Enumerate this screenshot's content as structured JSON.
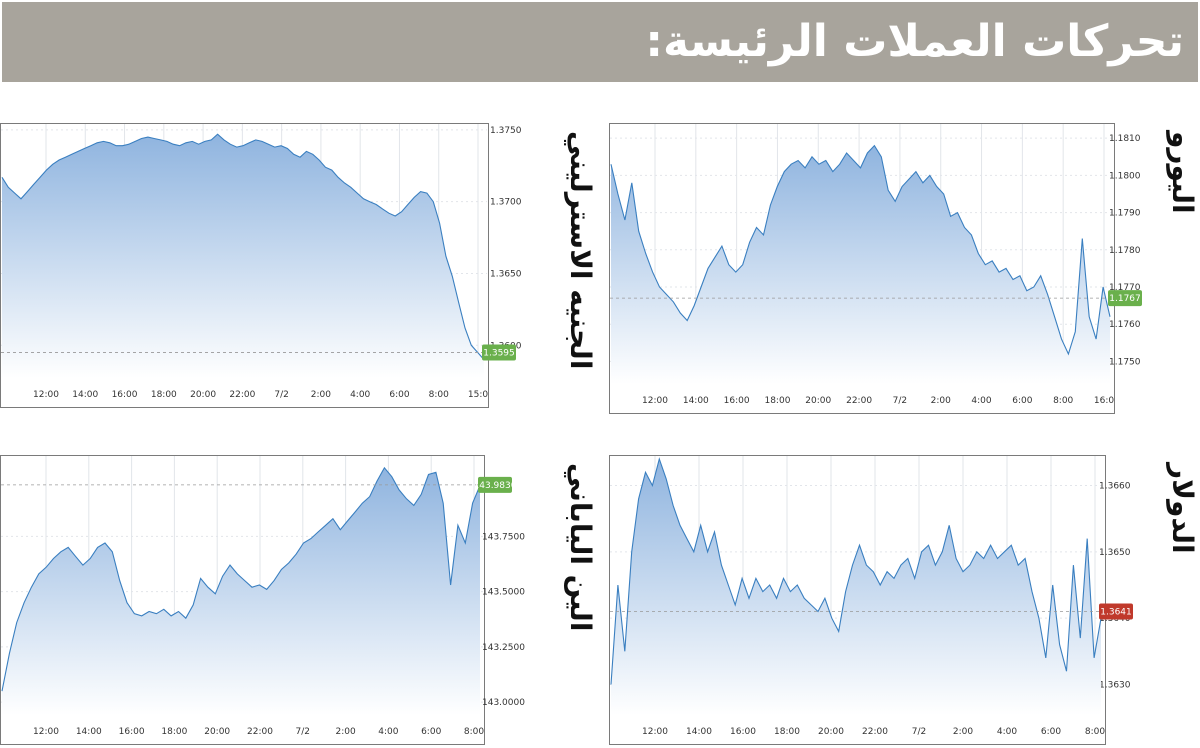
{
  "header": {
    "title": "تحركات العملات الرئيسة:"
  },
  "colors": {
    "line": "#3a7fc0",
    "fill_top": "#8fb4df",
    "fill_bottom": "#ffffff",
    "grid": "#e2e5ea",
    "frame": "#7a7a7a",
    "header_bg": "#a8a49c",
    "badge_green": "#6ab04c",
    "badge_red": "#c0392b"
  },
  "chart_data": [
    {
      "id": "eur",
      "type": "area",
      "title": "اليورو",
      "x_ticks": [
        "12:00",
        "14:00",
        "16:00",
        "18:00",
        "20:00",
        "22:00",
        "7/2",
        "2:00",
        "4:00",
        "6:00",
        "8:00",
        "16:0"
      ],
      "y_ticks": [
        "1.1810",
        "1.1800",
        "1.1790",
        "1.1780",
        "1.1770",
        "1.1760",
        "1.1750"
      ],
      "ylim": [
        1.1745,
        1.1813
      ],
      "current_value": "1.1767",
      "badge_color": "green",
      "values": [
        1.1803,
        1.1795,
        1.1788,
        1.1798,
        1.1785,
        1.1779,
        1.1774,
        1.177,
        1.1768,
        1.1766,
        1.1763,
        1.1761,
        1.1765,
        1.177,
        1.1775,
        1.1778,
        1.1781,
        1.1776,
        1.1774,
        1.1776,
        1.1782,
        1.1786,
        1.1784,
        1.1792,
        1.1797,
        1.1801,
        1.1803,
        1.1804,
        1.1802,
        1.1805,
        1.1803,
        1.1804,
        1.1801,
        1.1803,
        1.1806,
        1.1804,
        1.1802,
        1.1806,
        1.1808,
        1.1805,
        1.1796,
        1.1793,
        1.1797,
        1.1799,
        1.1801,
        1.1798,
        1.18,
        1.1797,
        1.1795,
        1.1789,
        1.179,
        1.1786,
        1.1784,
        1.1779,
        1.1776,
        1.1777,
        1.1774,
        1.1775,
        1.1772,
        1.1773,
        1.1769,
        1.177,
        1.1773,
        1.1768,
        1.1762,
        1.1756,
        1.1752,
        1.1758,
        1.1783,
        1.1762,
        1.1756,
        1.177,
        1.1762
      ]
    },
    {
      "id": "gbp",
      "type": "area",
      "title": "الجنيه الاسترليني",
      "x_ticks": [
        "12:00",
        "14:00",
        "16:00",
        "18:00",
        "20:00",
        "22:00",
        "7/2",
        "2:00",
        "4:00",
        "6:00",
        "8:00",
        "15:0"
      ],
      "y_ticks": [
        "1.3750",
        "1.3700",
        "1.3650",
        "1.3600"
      ],
      "ylim": [
        1.358,
        1.3752
      ],
      "current_value": "1.3595",
      "badge_color": "green",
      "values": [
        1.3717,
        1.371,
        1.3706,
        1.3702,
        1.3707,
        1.3712,
        1.3717,
        1.3722,
        1.3726,
        1.3729,
        1.3731,
        1.3733,
        1.3735,
        1.3737,
        1.3739,
        1.3741,
        1.3742,
        1.3741,
        1.3739,
        1.3739,
        1.374,
        1.3742,
        1.3744,
        1.3745,
        1.3744,
        1.3743,
        1.3742,
        1.374,
        1.3739,
        1.3741,
        1.3742,
        1.374,
        1.3742,
        1.3743,
        1.3747,
        1.3743,
        1.374,
        1.3738,
        1.3739,
        1.3741,
        1.3743,
        1.3742,
        1.374,
        1.3738,
        1.3739,
        1.3737,
        1.3733,
        1.3731,
        1.3735,
        1.3733,
        1.3729,
        1.3724,
        1.3722,
        1.3717,
        1.3713,
        1.371,
        1.3706,
        1.3702,
        1.37,
        1.3698,
        1.3695,
        1.3692,
        1.369,
        1.3693,
        1.3698,
        1.3703,
        1.3707,
        1.3706,
        1.37,
        1.3685,
        1.3662,
        1.3648,
        1.363,
        1.3612,
        1.36,
        1.3595,
        1.359
      ]
    },
    {
      "id": "usd",
      "type": "area",
      "title": "الدولار",
      "x_ticks": [
        "12:00",
        "14:00",
        "16:00",
        "18:00",
        "20:00",
        "22:00",
        "7/2",
        "2:00",
        "4:00",
        "6:00",
        "8:00"
      ],
      "y_ticks": [
        "1.3660",
        "1.3650",
        "1.3640",
        "1.3630"
      ],
      "ylim": [
        1.3626,
        1.3664
      ],
      "current_value": "1.3641",
      "badge_color": "red",
      "values": [
        1.363,
        1.3645,
        1.3635,
        1.365,
        1.3658,
        1.3662,
        1.366,
        1.3664,
        1.3661,
        1.3657,
        1.3654,
        1.3652,
        1.365,
        1.3654,
        1.365,
        1.3653,
        1.3648,
        1.3645,
        1.3642,
        1.3646,
        1.3643,
        1.3646,
        1.3644,
        1.3645,
        1.3643,
        1.3646,
        1.3644,
        1.3645,
        1.3643,
        1.3642,
        1.3641,
        1.3643,
        1.364,
        1.3638,
        1.3644,
        1.3648,
        1.3651,
        1.3648,
        1.3647,
        1.3645,
        1.3647,
        1.3646,
        1.3648,
        1.3649,
        1.3646,
        1.365,
        1.3651,
        1.3648,
        1.365,
        1.3654,
        1.3649,
        1.3647,
        1.3648,
        1.365,
        1.3649,
        1.3651,
        1.3649,
        1.365,
        1.3651,
        1.3648,
        1.3649,
        1.3644,
        1.364,
        1.3634,
        1.3645,
        1.3636,
        1.3632,
        1.3648,
        1.3637,
        1.3652,
        1.3634,
        1.364
      ]
    },
    {
      "id": "jpy",
      "type": "area",
      "title": "الين الياباني",
      "x_ticks": [
        "12:00",
        "14:00",
        "16:00",
        "18:00",
        "20:00",
        "22:00",
        "7/2",
        "2:00",
        "4:00",
        "6:00",
        "8:00"
      ],
      "y_ticks": [
        "143.7500",
        "143.5000",
        "143.2500",
        "143.0000"
      ],
      "ylim": [
        142.96,
        144.1
      ],
      "current_value": "143.9830",
      "badge_color": "green",
      "values": [
        143.05,
        143.22,
        143.36,
        143.45,
        143.52,
        143.58,
        143.61,
        143.65,
        143.68,
        143.7,
        143.66,
        143.62,
        143.65,
        143.7,
        143.72,
        143.68,
        143.55,
        143.45,
        143.4,
        143.39,
        143.41,
        143.4,
        143.42,
        143.39,
        143.41,
        143.38,
        143.44,
        143.56,
        143.52,
        143.49,
        143.57,
        143.62,
        143.58,
        143.55,
        143.52,
        143.53,
        143.51,
        143.55,
        143.6,
        143.63,
        143.67,
        143.72,
        143.74,
        143.77,
        143.8,
        143.83,
        143.78,
        143.82,
        143.86,
        143.9,
        143.93,
        144.0,
        144.06,
        144.02,
        143.96,
        143.92,
        143.89,
        143.94,
        144.03,
        144.04,
        143.9,
        143.53,
        143.8,
        143.72,
        143.9,
        143.98
      ]
    }
  ]
}
